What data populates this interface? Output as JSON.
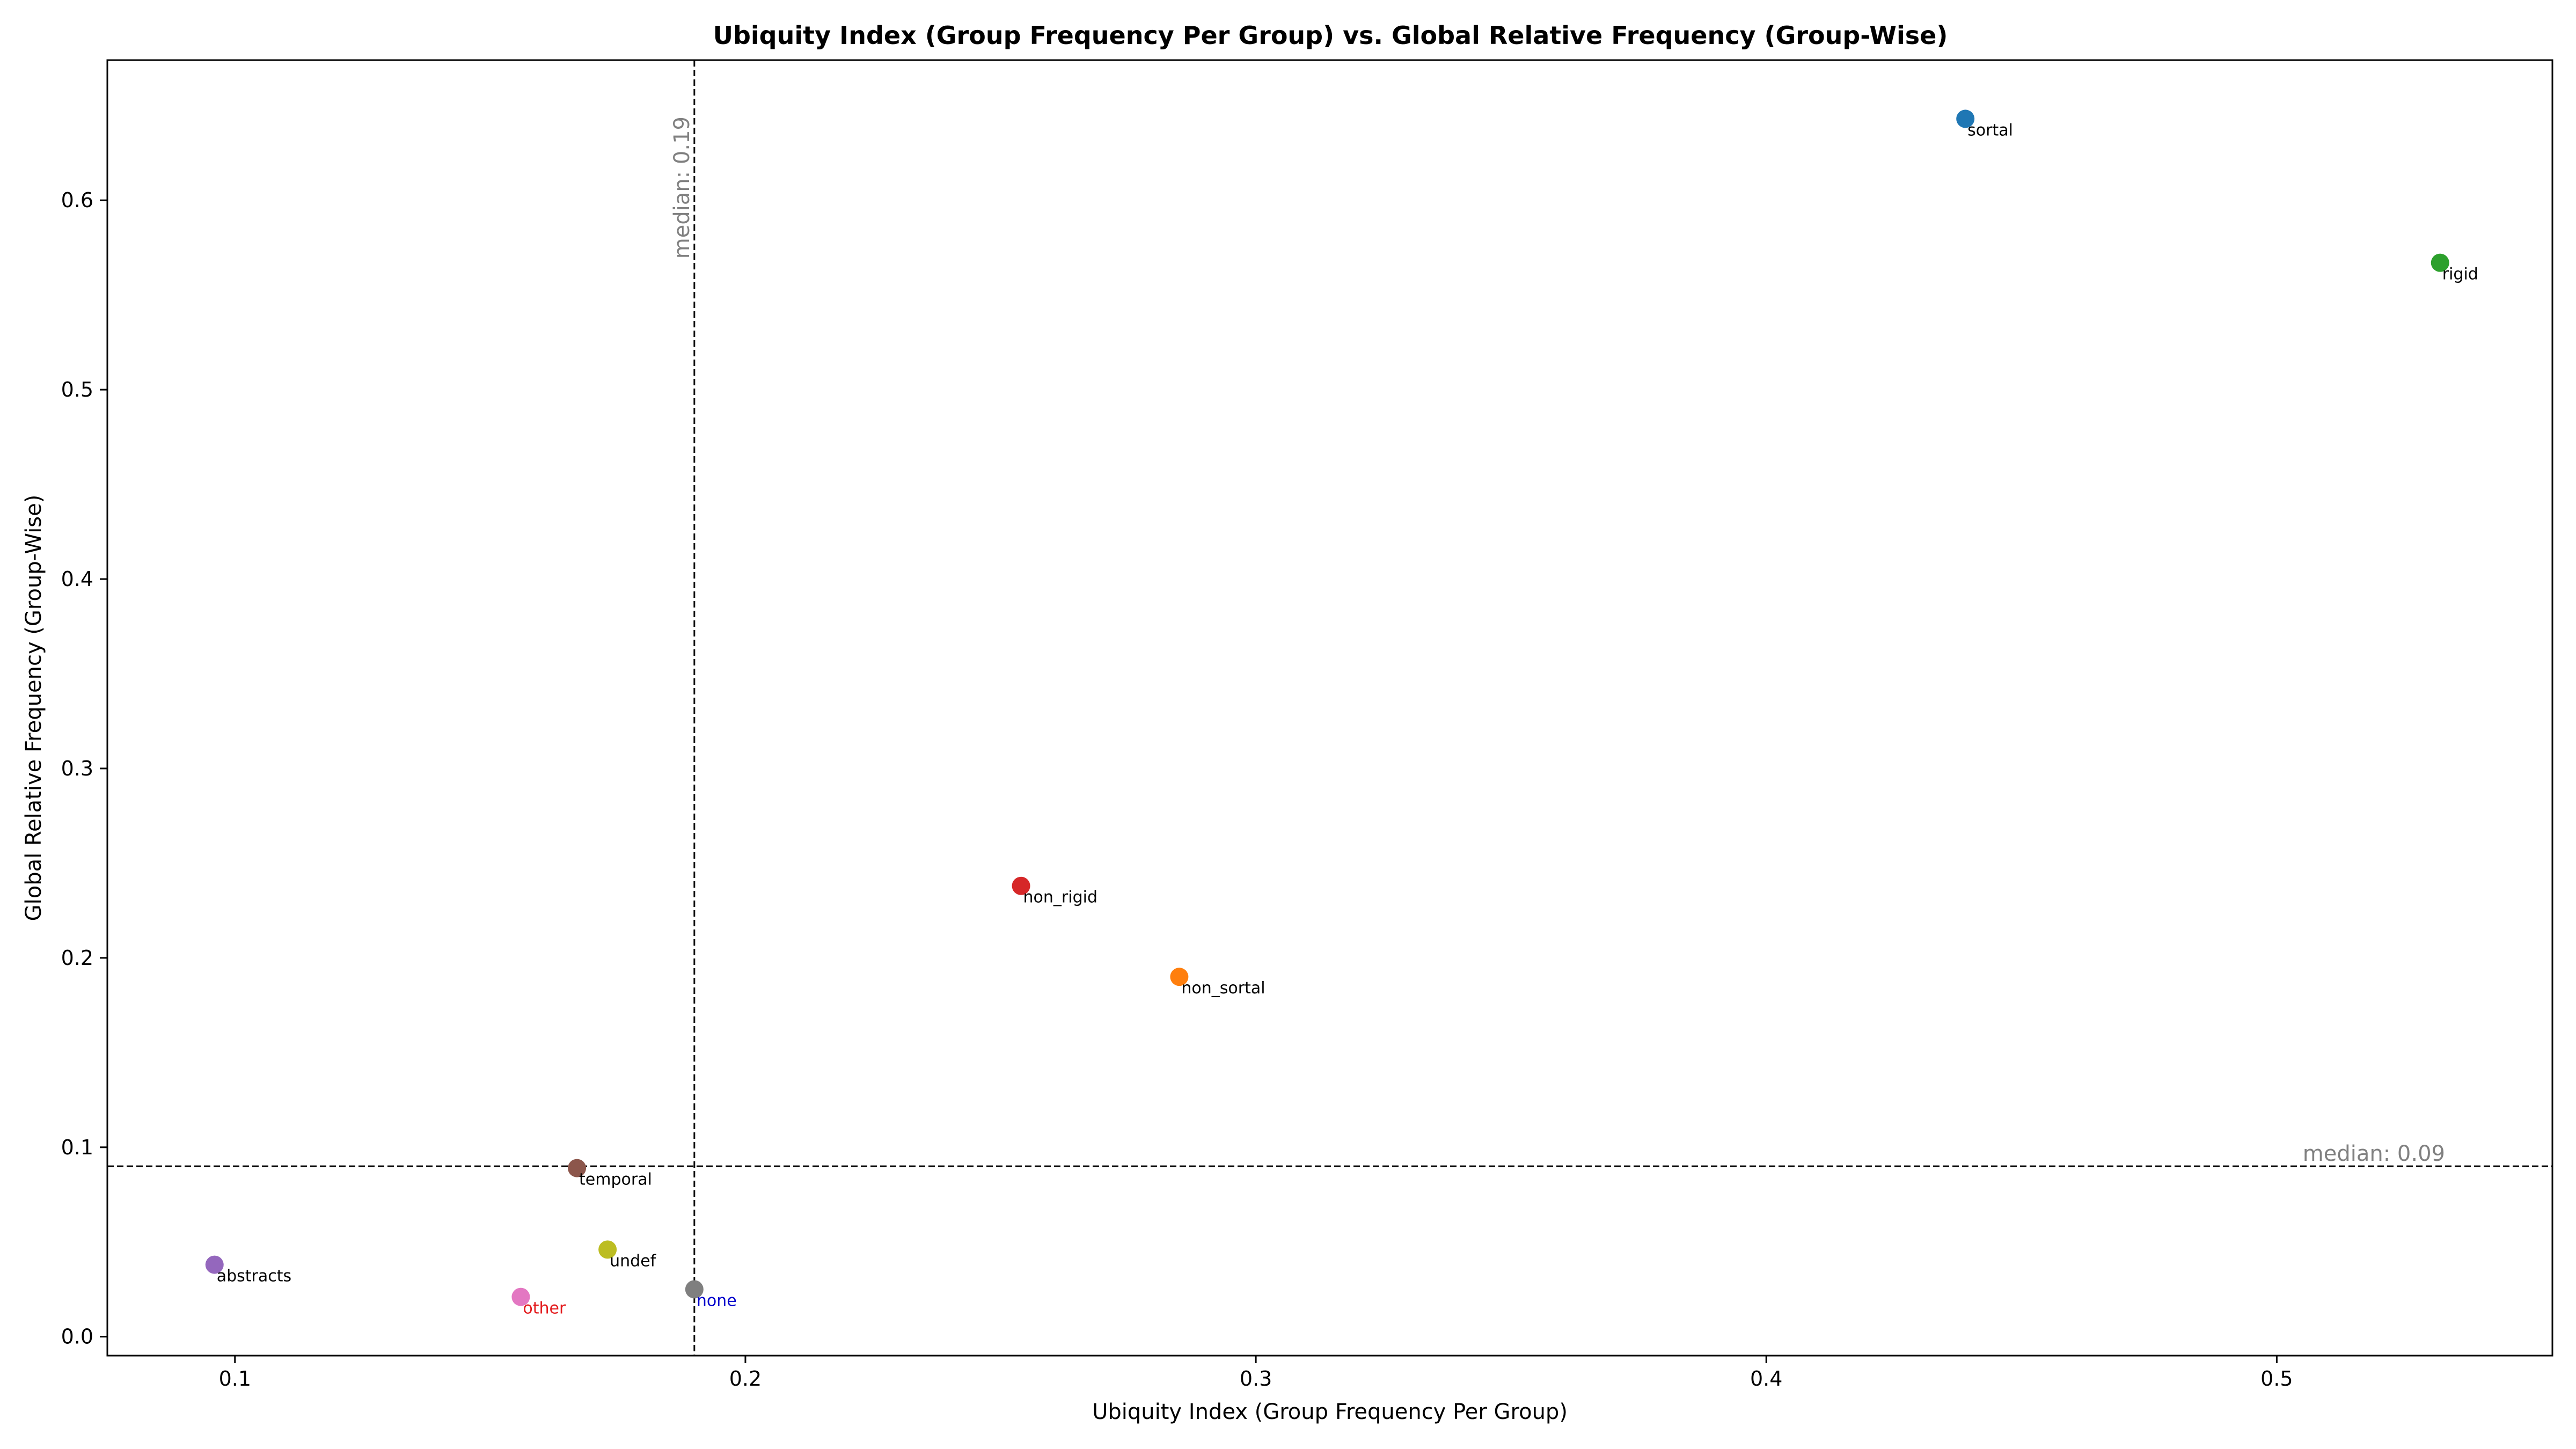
{
  "chart_data": {
    "type": "scatter",
    "title": "Ubiquity Index (Group Frequency Per Group) vs. Global Relative Frequency (Group-Wise)",
    "xlabel": "Ubiquity Index (Group Frequency Per Group)",
    "ylabel": "Global Relative Frequency (Group-Wise)",
    "xlim": [
      0.075,
      0.554
    ],
    "ylim": [
      -0.01,
      0.674
    ],
    "xticks": [
      0.1,
      0.2,
      0.3,
      0.4,
      0.5
    ],
    "xtick_labels": [
      "0.1",
      "0.2",
      "0.3",
      "0.4",
      "0.5"
    ],
    "yticks": [
      0.0,
      0.1,
      0.2,
      0.3,
      0.4,
      0.5,
      0.6
    ],
    "ytick_labels": [
      "0.0",
      "0.1",
      "0.2",
      "0.3",
      "0.4",
      "0.5",
      "0.6"
    ],
    "grid": false,
    "points": [
      {
        "label": "sortal",
        "x": 0.439,
        "y": 0.643,
        "color": "#1f77b4",
        "label_color": "#000000"
      },
      {
        "label": "rigid",
        "x": 0.532,
        "y": 0.567,
        "color": "#2ca02c",
        "label_color": "#000000"
      },
      {
        "label": "non_rigid",
        "x": 0.254,
        "y": 0.238,
        "color": "#d62728",
        "label_color": "#000000"
      },
      {
        "label": "non_sortal",
        "x": 0.285,
        "y": 0.19,
        "color": "#ff7f0e",
        "label_color": "#000000"
      },
      {
        "label": "temporal",
        "x": 0.167,
        "y": 0.089,
        "color": "#8c564b",
        "label_color": "#000000"
      },
      {
        "label": "undef",
        "x": 0.173,
        "y": 0.046,
        "color": "#bcbd22",
        "label_color": "#000000"
      },
      {
        "label": "abstracts",
        "x": 0.096,
        "y": 0.038,
        "color": "#9467bd",
        "label_color": "#000000"
      },
      {
        "label": "other",
        "x": 0.156,
        "y": 0.021,
        "color": "#e377c2",
        "label_color": "#e31a1c"
      },
      {
        "label": "none",
        "x": 0.19,
        "y": 0.025,
        "color": "#7f7f7f",
        "label_color": "#0000cc"
      }
    ],
    "median_x": {
      "value": 0.19,
      "label": "median: 0.19"
    },
    "median_y": {
      "value": 0.09,
      "label": "median: 0.09"
    }
  }
}
